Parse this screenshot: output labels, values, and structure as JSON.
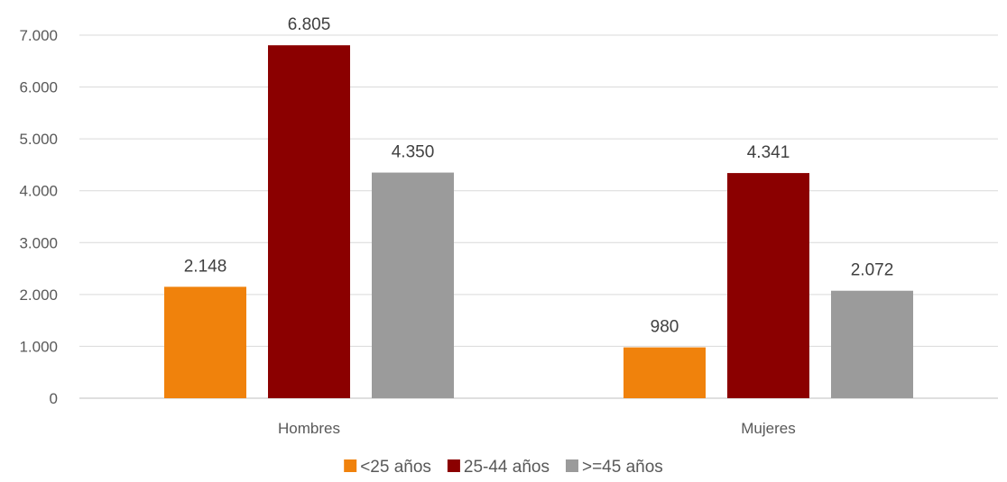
{
  "chart_data": {
    "type": "bar",
    "categories": [
      "Hombres",
      "Mujeres"
    ],
    "series": [
      {
        "name": "<25 años",
        "color": "#F0820C",
        "values": [
          2148,
          980
        ],
        "labels": [
          "2.148",
          "980"
        ]
      },
      {
        "name": "25-44 años",
        "color": "#8B0000",
        "values": [
          6805,
          4341
        ],
        "labels": [
          "6.805",
          "4.341"
        ]
      },
      {
        "name": ">=45 años",
        "color": "#9B9B9B",
        "values": [
          4350,
          2072
        ],
        "labels": [
          "4.350",
          "2.072"
        ]
      }
    ],
    "ylim": [
      0,
      7000
    ],
    "yticks": [
      0,
      1000,
      2000,
      3000,
      4000,
      5000,
      6000,
      7000
    ],
    "ytick_labels": [
      "0",
      "1.000",
      "2.000",
      "3.000",
      "4.000",
      "5.000",
      "6.000",
      "7.000"
    ],
    "grid": true,
    "legend_position": "bottom"
  }
}
